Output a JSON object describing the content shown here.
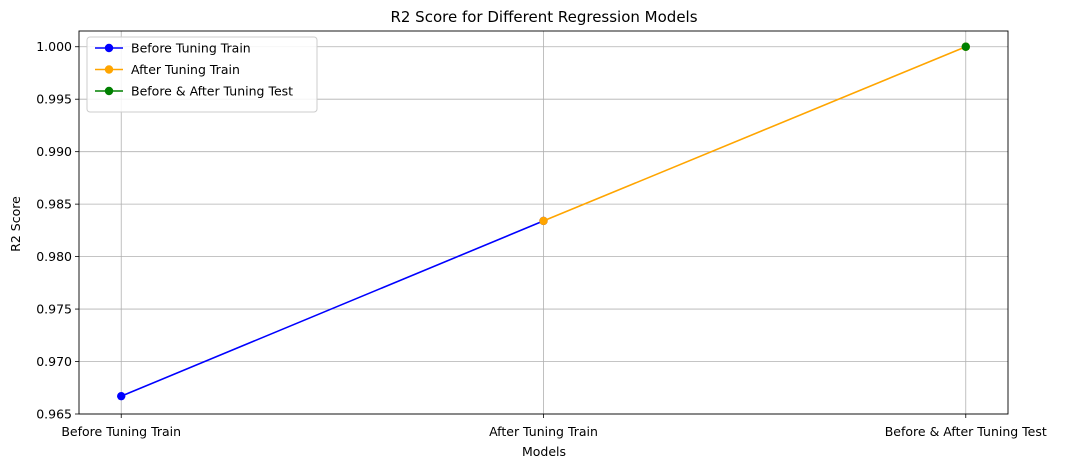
{
  "chart_data": {
    "type": "line",
    "title": "R2 Score for Different Regression Models",
    "xlabel": "Models",
    "ylabel": "R2 Score",
    "categories": [
      "Before Tuning Train",
      "After Tuning Train",
      "Before & After Tuning Test"
    ],
    "ylim": [
      0.965,
      1.0015
    ],
    "yticks": [
      "0.965",
      "0.970",
      "0.975",
      "0.980",
      "0.985",
      "0.990",
      "0.995",
      "1.000"
    ],
    "grid": true,
    "legend_position": "top-left",
    "series": [
      {
        "name": "Before Tuning Train",
        "color": "#0000ff",
        "points": [
          {
            "category": "Before Tuning Train",
            "value": 0.9667
          },
          {
            "category": "After Tuning Train",
            "value": 0.9834
          }
        ]
      },
      {
        "name": "After Tuning Train",
        "color": "#ffa500",
        "points": [
          {
            "category": "After Tuning Train",
            "value": 0.9834
          },
          {
            "category": "Before & After Tuning Test",
            "value": 1.0
          }
        ]
      },
      {
        "name": "Before & After Tuning Test",
        "color": "#008000",
        "points": [
          {
            "category": "Before & After Tuning Test",
            "value": 1.0
          }
        ]
      }
    ]
  }
}
